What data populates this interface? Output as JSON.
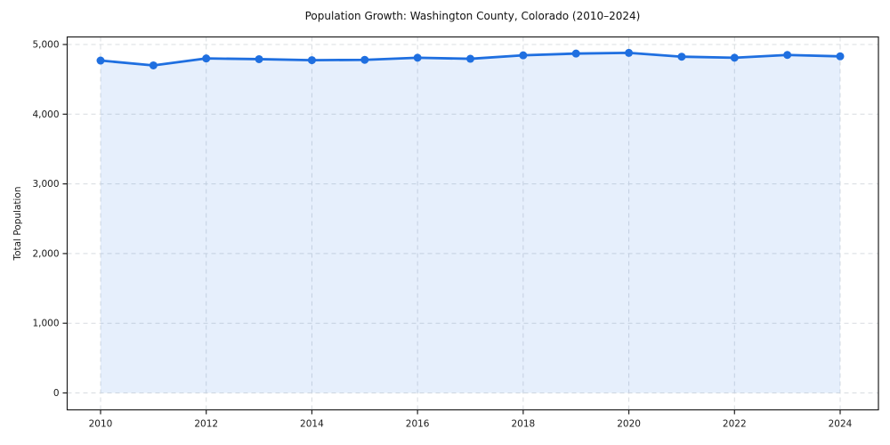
{
  "page": {
    "title": "Population Growth: Washington County, Colorado (2010–2024)"
  },
  "chart_data": {
    "type": "area",
    "title": "Population Growth: Washington County, Colorado (2010–2024)",
    "xlabel": "",
    "ylabel": "Total Population",
    "x": [
      2010,
      2011,
      2012,
      2013,
      2014,
      2015,
      2016,
      2017,
      2018,
      2019,
      2020,
      2021,
      2022,
      2023,
      2024
    ],
    "values": [
      4770,
      4700,
      4800,
      4790,
      4775,
      4780,
      4810,
      4795,
      4845,
      4870,
      4880,
      4825,
      4810,
      4850,
      4830
    ],
    "series_name": "Total Population",
    "xticks": [
      2010,
      2012,
      2014,
      2016,
      2018,
      2020,
      2022,
      2024
    ],
    "yticks": [
      0,
      1000,
      2000,
      3000,
      4000,
      5000
    ],
    "ytick_labels": [
      "0",
      "1,000",
      "2,000",
      "3,000",
      "4,000",
      "5,000"
    ],
    "ylim": [
      0,
      5000
    ],
    "grid": true,
    "grid_dashed": true,
    "legend_position": "none",
    "marker": "circle",
    "colors": {
      "line": "#1f6fe0",
      "marker": "#1f6fe0",
      "fill": "#1f6fe0",
      "fill_opacity": 0.11,
      "grid": "#d8dce0",
      "spine": "#1f1f1f",
      "tick_text": "#1a1a1a",
      "background": "#ffffff"
    }
  }
}
